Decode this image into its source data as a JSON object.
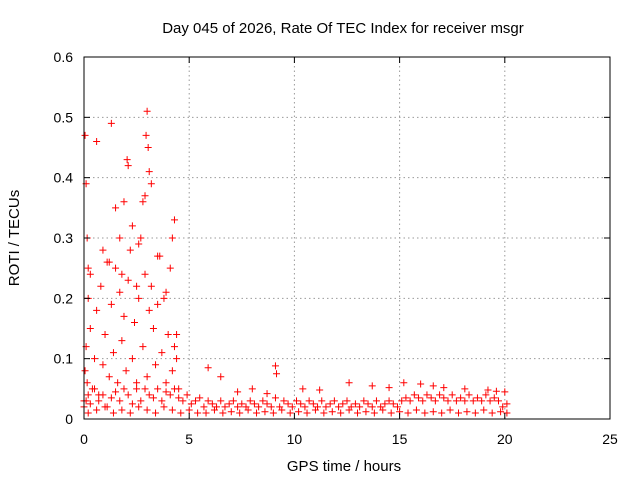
{
  "chart_data": {
    "type": "scatter",
    "title": "Day 045 of 2026, Rate Of TEC Index for receiver msgr",
    "xlabel": "GPS time / hours",
    "ylabel": "ROTI / TECUs",
    "xlim": [
      0,
      25
    ],
    "ylim": [
      0,
      0.6
    ],
    "xticks": [
      "0",
      "5",
      "10",
      "15",
      "20",
      "25"
    ],
    "yticks": [
      "0",
      "0.1",
      "0.2",
      "0.3",
      "0.4",
      "0.5",
      "0.6"
    ],
    "grid": true,
    "marker": "plus",
    "color": "#ff0000",
    "series": [
      {
        "name": "ROTI",
        "x": [
          0.0,
          0.05,
          0.1,
          0.15,
          0.2,
          0.3,
          0.4,
          0.5,
          0.6,
          0.7,
          0.8,
          0.9,
          1.0,
          1.1,
          1.2,
          1.3,
          1.4,
          1.5,
          1.6,
          1.7,
          1.8,
          1.9,
          2.0,
          2.1,
          2.2,
          2.3,
          2.4,
          2.5,
          2.6,
          2.7,
          2.8,
          2.9,
          3.0,
          3.1,
          3.2,
          3.3,
          3.4,
          3.5,
          3.6,
          3.7,
          3.8,
          3.9,
          4.0,
          4.1,
          4.2,
          4.3,
          4.4,
          4.5,
          0.05,
          0.1,
          0.3,
          0.6,
          1.3,
          1.5,
          1.7,
          1.9,
          2.05,
          2.1,
          2.3,
          2.8,
          2.95,
          3.0,
          3.05,
          3.2,
          3.1,
          2.9,
          4.3,
          4.4,
          4.2,
          2.6,
          1.2,
          0.15,
          0.2,
          0.9,
          1.8,
          2.5,
          3.5,
          3.9,
          0.0,
          0.1,
          0.2,
          0.3,
          0.5,
          0.7,
          0.9,
          1.1,
          1.3,
          1.5,
          1.7,
          1.9,
          2.1,
          2.3,
          2.5,
          2.7,
          2.9,
          3.1,
          3.3,
          3.5,
          3.7,
          3.9,
          4.1,
          4.3,
          4.5,
          4.7,
          4.9,
          5.1,
          5.3,
          5.5,
          5.7,
          5.9,
          6.1,
          6.3,
          6.5,
          6.7,
          6.9,
          7.1,
          7.3,
          7.5,
          7.7,
          7.9,
          8.1,
          8.3,
          8.5,
          8.7,
          8.9,
          9.1,
          9.3,
          9.5,
          9.7,
          9.9,
          10.1,
          10.3,
          10.5,
          10.7,
          10.9,
          11.1,
          11.3,
          11.5,
          11.7,
          11.9,
          12.1,
          12.3,
          12.5,
          12.7,
          12.9,
          13.1,
          13.3,
          13.5,
          13.7,
          13.9,
          14.1,
          14.3,
          14.5,
          14.7,
          14.9,
          15.1,
          15.3,
          15.5,
          15.7,
          15.9,
          16.1,
          16.3,
          16.5,
          16.7,
          16.9,
          17.1,
          17.3,
          17.5,
          17.7,
          17.9,
          18.1,
          18.3,
          18.5,
          18.7,
          18.9,
          19.1,
          19.3,
          19.5,
          19.7,
          19.9,
          20.1,
          0.2,
          0.6,
          1.0,
          1.4,
          1.8,
          2.2,
          2.6,
          3.0,
          3.4,
          3.8,
          4.2,
          4.6,
          5.0,
          5.4,
          5.8,
          6.2,
          6.6,
          7.0,
          7.4,
          7.8,
          8.2,
          8.6,
          9.0,
          9.4,
          9.8,
          10.2,
          10.6,
          11.0,
          11.4,
          11.8,
          12.2,
          12.6,
          13.0,
          13.4,
          13.8,
          14.2,
          14.6,
          15.0,
          15.4,
          15.8,
          16.2,
          16.6,
          17.0,
          17.4,
          17.8,
          18.2,
          18.6,
          19.0,
          19.4,
          19.8,
          20.1,
          5.9,
          9.1,
          9.15,
          12.6,
          13.7,
          15.2,
          16.0,
          16.6,
          17.1,
          18.1,
          19.2,
          20.0,
          10.4,
          11.2,
          14.5,
          19.6,
          7.3,
          8.0,
          8.7,
          6.5
        ],
        "y": [
          0.03,
          0.08,
          0.12,
          0.06,
          0.2,
          0.15,
          0.05,
          0.1,
          0.18,
          0.04,
          0.22,
          0.09,
          0.14,
          0.26,
          0.07,
          0.19,
          0.11,
          0.25,
          0.06,
          0.21,
          0.13,
          0.17,
          0.08,
          0.23,
          0.28,
          0.1,
          0.16,
          0.05,
          0.2,
          0.3,
          0.12,
          0.24,
          0.07,
          0.18,
          0.22,
          0.15,
          0.09,
          0.19,
          0.27,
          0.11,
          0.2,
          0.06,
          0.14,
          0.25,
          0.08,
          0.12,
          0.1,
          0.05,
          0.47,
          0.39,
          0.24,
          0.46,
          0.49,
          0.35,
          0.3,
          0.36,
          0.43,
          0.42,
          0.32,
          0.36,
          0.47,
          0.51,
          0.45,
          0.39,
          0.41,
          0.37,
          0.33,
          0.14,
          0.3,
          0.29,
          0.26,
          0.3,
          0.25,
          0.28,
          0.24,
          0.22,
          0.27,
          0.21,
          0.02,
          0.03,
          0.04,
          0.025,
          0.05,
          0.03,
          0.04,
          0.02,
          0.035,
          0.045,
          0.03,
          0.05,
          0.04,
          0.025,
          0.06,
          0.03,
          0.05,
          0.04,
          0.035,
          0.05,
          0.03,
          0.045,
          0.04,
          0.05,
          0.035,
          0.03,
          0.04,
          0.025,
          0.03,
          0.035,
          0.02,
          0.03,
          0.025,
          0.02,
          0.03,
          0.02,
          0.025,
          0.03,
          0.02,
          0.025,
          0.02,
          0.03,
          0.025,
          0.02,
          0.03,
          0.025,
          0.02,
          0.035,
          0.02,
          0.03,
          0.025,
          0.02,
          0.03,
          0.025,
          0.02,
          0.03,
          0.025,
          0.02,
          0.03,
          0.02,
          0.025,
          0.03,
          0.02,
          0.025,
          0.03,
          0.02,
          0.025,
          0.02,
          0.03,
          0.025,
          0.02,
          0.03,
          0.02,
          0.025,
          0.03,
          0.025,
          0.02,
          0.03,
          0.035,
          0.03,
          0.04,
          0.035,
          0.03,
          0.04,
          0.035,
          0.03,
          0.04,
          0.035,
          0.03,
          0.04,
          0.03,
          0.035,
          0.03,
          0.04,
          0.03,
          0.035,
          0.03,
          0.04,
          0.03,
          0.035,
          0.03,
          0.02,
          0.025,
          0.01,
          0.015,
          0.02,
          0.01,
          0.015,
          0.01,
          0.02,
          0.015,
          0.01,
          0.02,
          0.015,
          0.01,
          0.015,
          0.01,
          0.01,
          0.015,
          0.01,
          0.012,
          0.01,
          0.015,
          0.01,
          0.012,
          0.01,
          0.015,
          0.01,
          0.012,
          0.01,
          0.015,
          0.01,
          0.012,
          0.01,
          0.015,
          0.01,
          0.012,
          0.01,
          0.015,
          0.01,
          0.012,
          0.01,
          0.015,
          0.01,
          0.012,
          0.01,
          0.015,
          0.01,
          0.012,
          0.01,
          0.015,
          0.01,
          0.012,
          0.01,
          0.085,
          0.088,
          0.075,
          0.06,
          0.055,
          0.06,
          0.058,
          0.055,
          0.052,
          0.05,
          0.048,
          0.045,
          0.05,
          0.048,
          0.052,
          0.046,
          0.045,
          0.05,
          0.042,
          0.07
        ]
      }
    ]
  }
}
